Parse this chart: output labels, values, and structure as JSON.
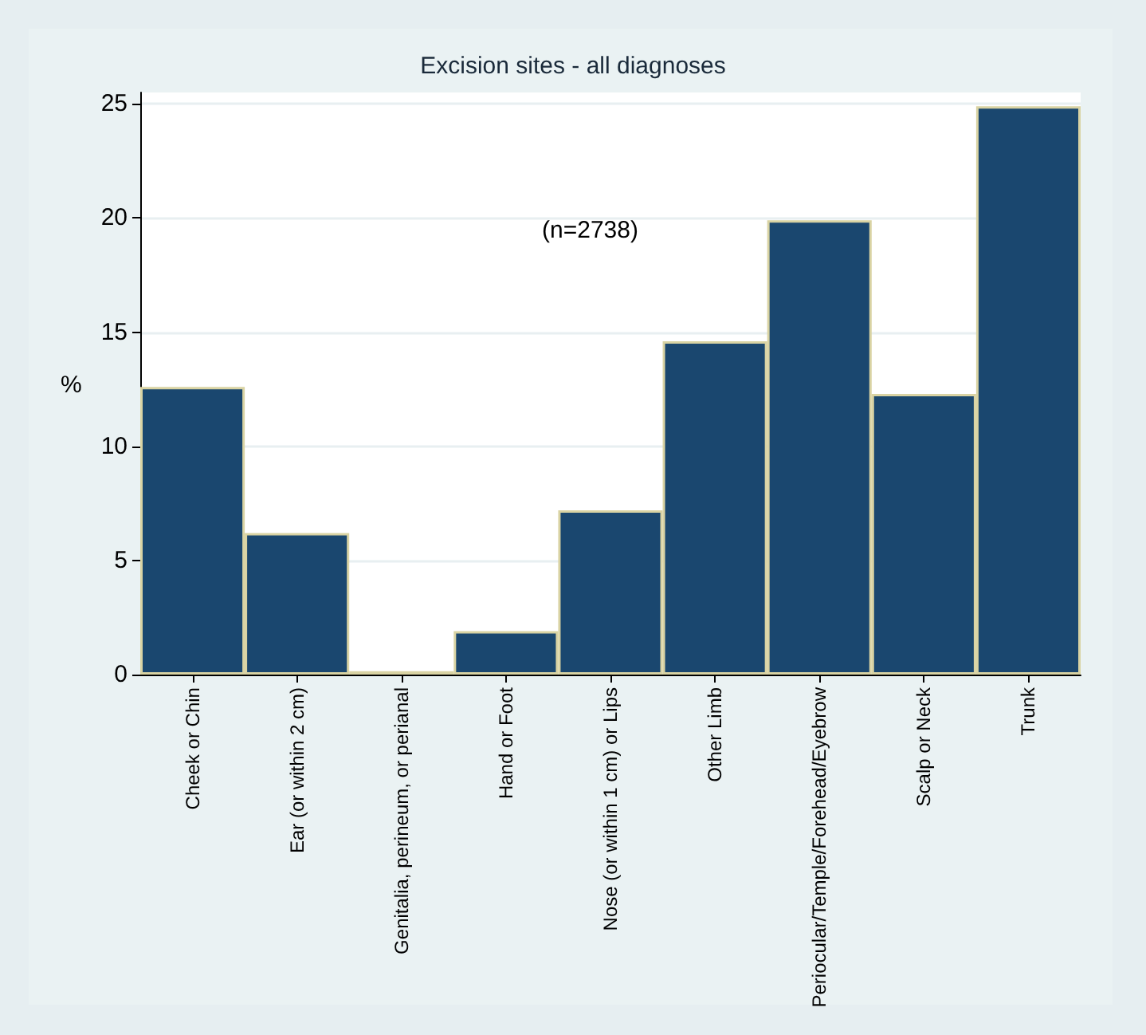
{
  "chart_data": {
    "type": "bar",
    "title": "Excision sites - all diagnoses",
    "ylabel": "%",
    "categories": [
      "Cheek or Chin",
      "Ear (or within 2 cm)",
      "Genitalia, perineum, or perianal",
      "Hand or Foot",
      "Nose (or within 1 cm) or Lips",
      "Other Limb",
      "Periocular/Temple/Forehead/Eyebrow",
      "Scalp or Neck",
      "Trunk"
    ],
    "values": [
      12.6,
      6.2,
      0.15,
      1.9,
      7.2,
      14.6,
      19.9,
      12.3,
      24.9
    ],
    "color": "#1a476f",
    "ylim": [
      0,
      25.5
    ],
    "yticks": [
      0,
      5,
      10,
      15,
      20,
      25
    ],
    "grid": "y",
    "annotations": [
      "(n=2738)"
    ]
  }
}
